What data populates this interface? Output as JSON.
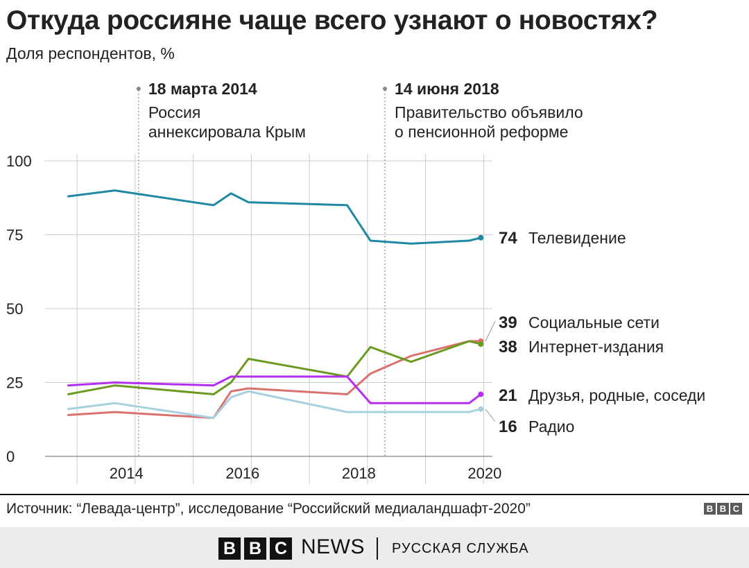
{
  "header": {
    "title": "Откуда россияне чаще всего узнают о новостях?",
    "subtitle": "Доля респондентов, %"
  },
  "annotations": [
    {
      "date": "18 марта 2014",
      "x": 2014.21,
      "lines": [
        "Россия",
        "аннексировала Крым"
      ]
    },
    {
      "date": "14 июня 2018",
      "x": 2018.45,
      "lines": [
        "Правительство объявило",
        "о пенсионной реформе"
      ]
    }
  ],
  "chart_data": {
    "type": "line",
    "xlim": [
      2012.6,
      2020.3
    ],
    "ylim": [
      0,
      100
    ],
    "x_ticks": [
      2014,
      2016,
      2018,
      2020
    ],
    "y_ticks": [
      0,
      25,
      50,
      75,
      100
    ],
    "x_grid": [
      2013.15,
      2014.15,
      2015.15,
      2016.15,
      2017.15,
      2018.15,
      2019.15,
      2020.15
    ],
    "grid": true,
    "series": [
      {
        "name": "Телевидение",
        "label_value": "74",
        "color": "#1f88a5",
        "x": [
          2013.0,
          2013.8,
          2015.5,
          2015.8,
          2016.1,
          2017.8,
          2018.2,
          2018.9,
          2019.9,
          2020.1
        ],
        "y": [
          88,
          90,
          85,
          89,
          86,
          85,
          73,
          72,
          73,
          74
        ]
      },
      {
        "name": "Социальные сети",
        "label_value": "39",
        "color": "#d9726c",
        "x": [
          2013.0,
          2013.8,
          2015.5,
          2015.8,
          2016.1,
          2017.8,
          2018.2,
          2018.9,
          2019.9,
          2020.1
        ],
        "y": [
          14,
          15,
          13,
          22,
          23,
          21,
          28,
          34,
          39,
          39
        ]
      },
      {
        "name": "Интернет-издания",
        "label_value": "38",
        "color": "#6a9a1f",
        "x": [
          2013.0,
          2013.8,
          2015.5,
          2015.8,
          2016.1,
          2017.8,
          2018.2,
          2018.9,
          2019.9,
          2020.1
        ],
        "y": [
          21,
          24,
          21,
          25,
          33,
          27,
          37,
          32,
          39,
          38
        ]
      },
      {
        "name": "Друзья, родные, соседи",
        "label_value": "21",
        "color": "#b42ff0",
        "x": [
          2013.0,
          2013.8,
          2015.5,
          2015.8,
          2016.1,
          2017.8,
          2018.2,
          2018.9,
          2019.9,
          2020.1
        ],
        "y": [
          24,
          25,
          24,
          27,
          27,
          27,
          18,
          18,
          18,
          21
        ]
      },
      {
        "name": "Радио",
        "label_value": "16",
        "color": "#a8d0de",
        "x": [
          2013.0,
          2013.8,
          2015.5,
          2015.8,
          2016.1,
          2017.8,
          2018.2,
          2018.9,
          2019.9,
          2020.1
        ],
        "y": [
          16,
          18,
          13,
          20,
          22,
          15,
          15,
          15,
          15,
          16
        ]
      }
    ]
  },
  "footer": {
    "source": "Источник: “Левада-центр”, исследование “Российский медиаландшафт-2020”",
    "bbc_letters": [
      "B",
      "B",
      "C"
    ],
    "news": "NEWS",
    "service": "РУССКАЯ СЛУЖБА"
  }
}
